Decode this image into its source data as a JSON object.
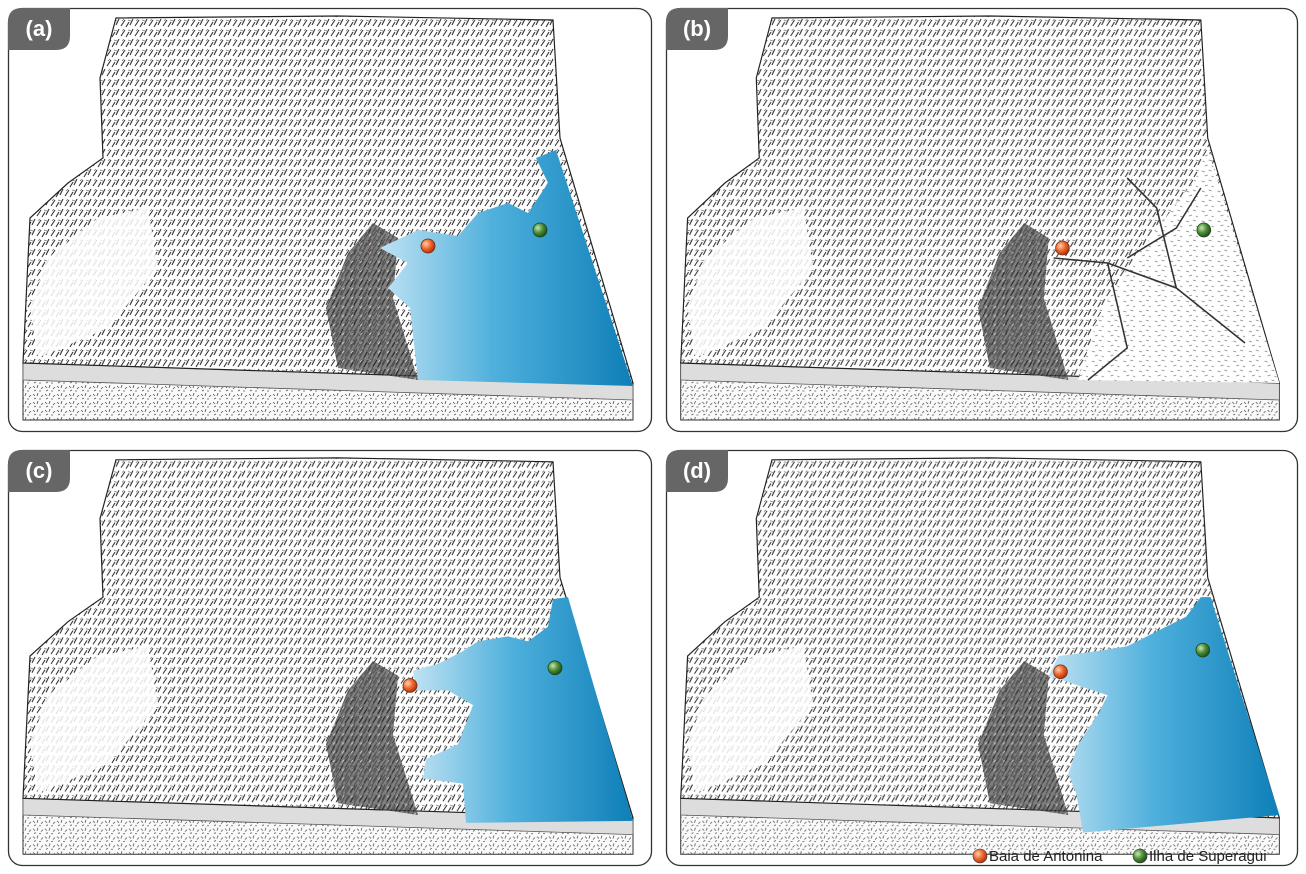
{
  "panels": [
    {
      "label": "(a)"
    },
    {
      "label": "(b)"
    },
    {
      "label": "(c)"
    },
    {
      "label": "(d)"
    }
  ],
  "legend": [
    {
      "label": "Baia de Antonina"
    },
    {
      "label": "Ilha de Superagui"
    }
  ]
}
